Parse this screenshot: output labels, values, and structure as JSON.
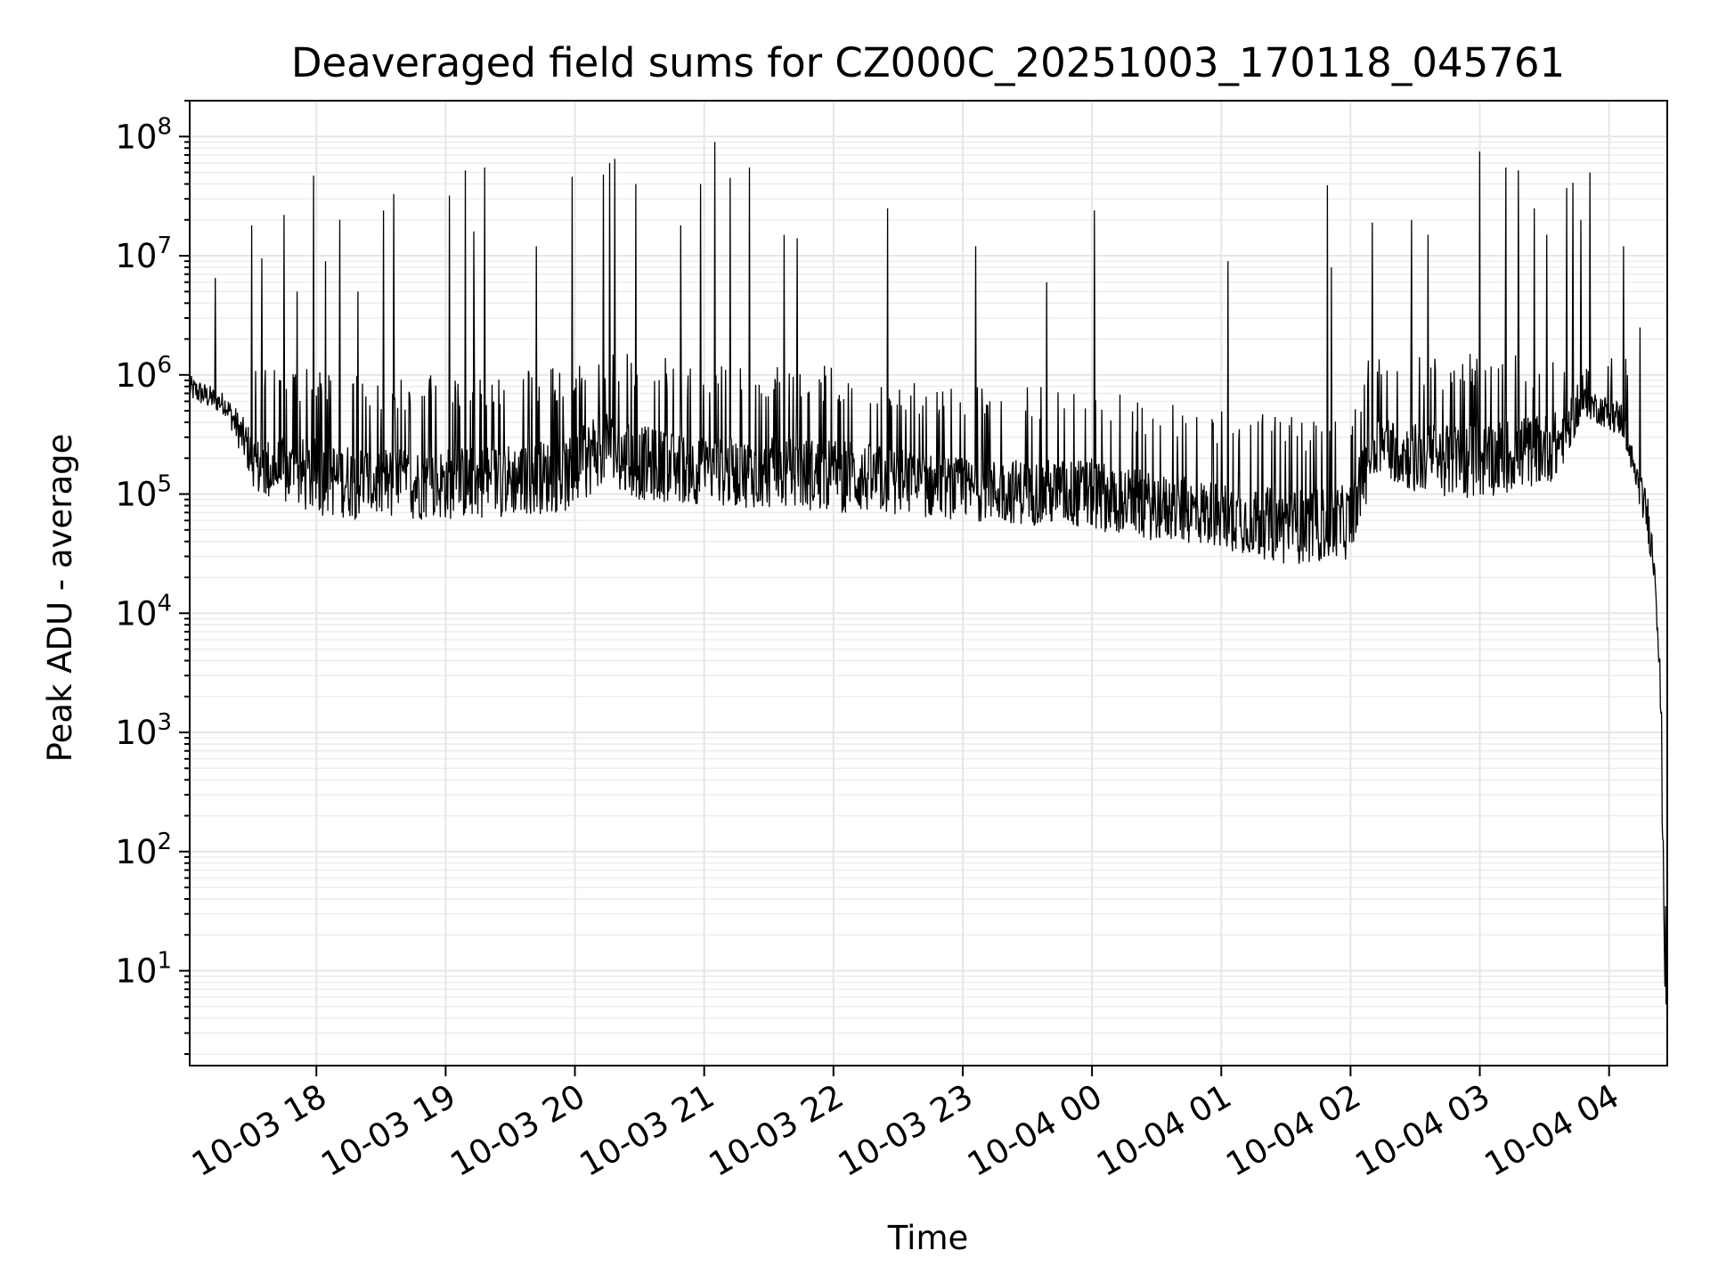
{
  "chart_data": {
    "type": "line",
    "title": "Deaveraged field sums for CZ000C_20251003_170118_045761",
    "xlabel": "Time",
    "ylabel": "Peak ADU - average",
    "yscale": "log",
    "ylim": [
      1.6,
      200000000
    ],
    "xlim_hours": [
      17.02,
      28.45
    ],
    "grid": true,
    "x_ticks": [
      {
        "hour": 18,
        "label": "10-03 18"
      },
      {
        "hour": 19,
        "label": "10-03 19"
      },
      {
        "hour": 20,
        "label": "10-03 20"
      },
      {
        "hour": 21,
        "label": "10-03 21"
      },
      {
        "hour": 22,
        "label": "10-03 22"
      },
      {
        "hour": 23,
        "label": "10-03 23"
      },
      {
        "hour": 24,
        "label": "10-04 00"
      },
      {
        "hour": 25,
        "label": "10-04 01"
      },
      {
        "hour": 26,
        "label": "10-04 02"
      },
      {
        "hour": 27,
        "label": "10-04 03"
      },
      {
        "hour": 28,
        "label": "10-04 04"
      }
    ],
    "y_ticks": [
      {
        "exp": 1,
        "base": "10",
        "sup": "1"
      },
      {
        "exp": 2,
        "base": "10",
        "sup": "2"
      },
      {
        "exp": 3,
        "base": "10",
        "sup": "3"
      },
      {
        "exp": 4,
        "base": "10",
        "sup": "4"
      },
      {
        "exp": 5,
        "base": "10",
        "sup": "5"
      },
      {
        "exp": 6,
        "base": "10",
        "sup": "6"
      },
      {
        "exp": 7,
        "base": "10",
        "sup": "7"
      },
      {
        "exp": 8,
        "base": "10",
        "sup": "8"
      }
    ],
    "series": [
      {
        "name": "Peak ADU - average",
        "color": "#000000",
        "profile": [
          [
            17.02,
            600000,
            1000000
          ],
          [
            17.3,
            450000,
            700000
          ],
          [
            17.55,
            90000,
            300000
          ],
          [
            18.0,
            65000,
            300000
          ],
          [
            18.5,
            60000,
            250000
          ],
          [
            19.0,
            60000,
            250000
          ],
          [
            20.0,
            70000,
            300000
          ],
          [
            20.2,
            120000,
            600000
          ],
          [
            20.4,
            90000,
            400000
          ],
          [
            21.0,
            80000,
            300000
          ],
          [
            22.0,
            70000,
            300000
          ],
          [
            23.0,
            60000,
            200000
          ],
          [
            24.0,
            50000,
            200000
          ],
          [
            24.5,
            40000,
            150000
          ],
          [
            25.0,
            35000,
            130000
          ],
          [
            25.5,
            25000,
            110000
          ],
          [
            25.98,
            28000,
            120000
          ],
          [
            26.2,
            150000,
            500000
          ],
          [
            26.5,
            100000,
            400000
          ],
          [
            27.0,
            90000,
            400000
          ],
          [
            27.6,
            130000,
            500000
          ],
          [
            27.8,
            450000,
            800000
          ],
          [
            28.1,
            300000,
            600000
          ],
          [
            28.2,
            120000,
            200000
          ],
          [
            28.3,
            40000,
            100000
          ],
          [
            28.36,
            15000,
            30000
          ],
          [
            28.4,
            1000,
            3000
          ],
          [
            28.43,
            5,
            100
          ],
          [
            28.45,
            4,
            5
          ]
        ],
        "spikes": [
          [
            17.22,
            6500000
          ],
          [
            17.5,
            18000000
          ],
          [
            17.58,
            9500000
          ],
          [
            17.75,
            22000000
          ],
          [
            17.85,
            5000000
          ],
          [
            17.98,
            47000000
          ],
          [
            18.07,
            9000000
          ],
          [
            18.18,
            20000000
          ],
          [
            18.32,
            5000000
          ],
          [
            18.52,
            24000000
          ],
          [
            18.6,
            33000000
          ],
          [
            19.03,
            32000000
          ],
          [
            19.15,
            52000000
          ],
          [
            19.22,
            16000000
          ],
          [
            19.3,
            55000000
          ],
          [
            19.7,
            12000000
          ],
          [
            19.98,
            46000000
          ],
          [
            20.22,
            48000000
          ],
          [
            20.27,
            60000000
          ],
          [
            20.31,
            65000000
          ],
          [
            20.47,
            40000000
          ],
          [
            20.82,
            18000000
          ],
          [
            20.97,
            40000000
          ],
          [
            21.08,
            90000000
          ],
          [
            21.2,
            45000000
          ],
          [
            21.35,
            55000000
          ],
          [
            21.62,
            15000000
          ],
          [
            21.72,
            14000000
          ],
          [
            22.42,
            25000000
          ],
          [
            23.1,
            12000000
          ],
          [
            23.65,
            6000000
          ],
          [
            24.02,
            24000000
          ],
          [
            25.05,
            9000000
          ],
          [
            25.82,
            39000000
          ],
          [
            25.85,
            8000000
          ],
          [
            26.17,
            19000000
          ],
          [
            26.47,
            20000000
          ],
          [
            26.6,
            15000000
          ],
          [
            27.0,
            75000000
          ],
          [
            27.2,
            55000000
          ],
          [
            27.3,
            52000000
          ],
          [
            27.42,
            25000000
          ],
          [
            27.52,
            15000000
          ],
          [
            27.67,
            37000000
          ],
          [
            27.72,
            41000000
          ],
          [
            27.78,
            20000000
          ],
          [
            27.85,
            50000000
          ],
          [
            28.11,
            12000000
          ],
          [
            28.24,
            2500000
          ]
        ]
      }
    ]
  }
}
